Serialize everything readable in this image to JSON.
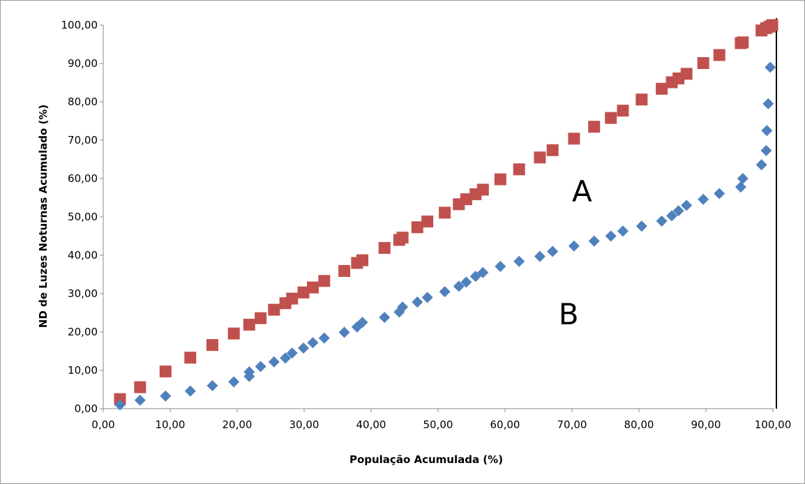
{
  "chart_data": {
    "type": "scatter",
    "title": "",
    "xlabel": "População  Acumulada (%)",
    "ylabel": "ND de Luzes Noturnas Acumulado (%)",
    "xlim": [
      0,
      100
    ],
    "ylim": [
      0,
      100
    ],
    "x_ticks": [
      "0,00",
      "10,00",
      "20,00",
      "30,00",
      "40,00",
      "50,00",
      "60,00",
      "70,00",
      "80,00",
      "90,00",
      "100,00"
    ],
    "y_ticks": [
      "0,00",
      "10,00",
      "20,00",
      "30,00",
      "40,00",
      "50,00",
      "60,00",
      "70,00",
      "80,00",
      "90,00",
      "100,00"
    ],
    "grid": false,
    "annotations": [
      {
        "text": "A",
        "x": 71.5,
        "y": 54
      },
      {
        "text": "B",
        "x": 69.5,
        "y": 22
      }
    ],
    "series": [
      {
        "marker": "square",
        "color": "#c0504d",
        "x": [
          2.5,
          5.5,
          9.3,
          13,
          16.3,
          19.5,
          21.8,
          23.5,
          25.5,
          27.2,
          28.2,
          29.9,
          31.3,
          33,
          36,
          37.9,
          38.7,
          42,
          44.2,
          44.7,
          46.9,
          48.4,
          51,
          53.1,
          54.2,
          55.6,
          56.7,
          59.3,
          62.1,
          65.2,
          67.1,
          70.3,
          73.3,
          75.8,
          77.6,
          80.4,
          83.4,
          84.9,
          85.9,
          87.1,
          89.6,
          92,
          95.2,
          95.5,
          98.3,
          99,
          99.5,
          99.9
        ],
        "y": [
          2.5,
          5.6,
          9.7,
          13.3,
          16.6,
          19.6,
          21.9,
          23.6,
          25.8,
          27.5,
          28.7,
          30.3,
          31.6,
          33.3,
          35.9,
          38,
          38.7,
          41.9,
          44,
          44.6,
          47.3,
          48.8,
          51.1,
          53.3,
          54.6,
          55.9,
          57.1,
          59.8,
          62.4,
          65.5,
          67.4,
          70.4,
          73.5,
          75.8,
          77.7,
          80.6,
          83.4,
          85.1,
          86.1,
          87.3,
          90.1,
          92.2,
          95.3,
          95.5,
          98.6,
          99.2,
          99.6,
          100
        ]
      },
      {
        "marker": "diamond",
        "color": "#4f81bd",
        "x": [
          2.5,
          5.5,
          9.3,
          13,
          16.3,
          19.5,
          21.8,
          21.8,
          23.5,
          25.5,
          27.2,
          28.2,
          29.9,
          31.3,
          33,
          36,
          37.9,
          38.7,
          42,
          44.2,
          44.7,
          46.9,
          48.4,
          51,
          53.1,
          54.2,
          55.6,
          56.7,
          59.3,
          62.1,
          65.2,
          67.1,
          70.3,
          73.3,
          75.8,
          77.6,
          80.4,
          83.4,
          84.9,
          85.9,
          87.1,
          89.6,
          92,
          95.2,
          95.5,
          98.3,
          99,
          99.1,
          99.3,
          99.6
        ],
        "y": [
          1,
          2.2,
          3.3,
          4.6,
          6,
          7,
          8.4,
          9.6,
          11,
          12.2,
          13.2,
          14.5,
          15.8,
          17.2,
          18.4,
          19.9,
          21.3,
          22.5,
          23.8,
          25.2,
          26.5,
          27.8,
          29,
          30.5,
          31.9,
          33,
          34.5,
          35.5,
          37.1,
          38.4,
          39.7,
          41,
          42.4,
          43.7,
          45,
          46.3,
          47.6,
          48.9,
          50.3,
          51.6,
          53,
          54.6,
          56.1,
          57.8,
          60,
          63.6,
          67.3,
          72.5,
          79.5,
          89
        ]
      }
    ]
  }
}
